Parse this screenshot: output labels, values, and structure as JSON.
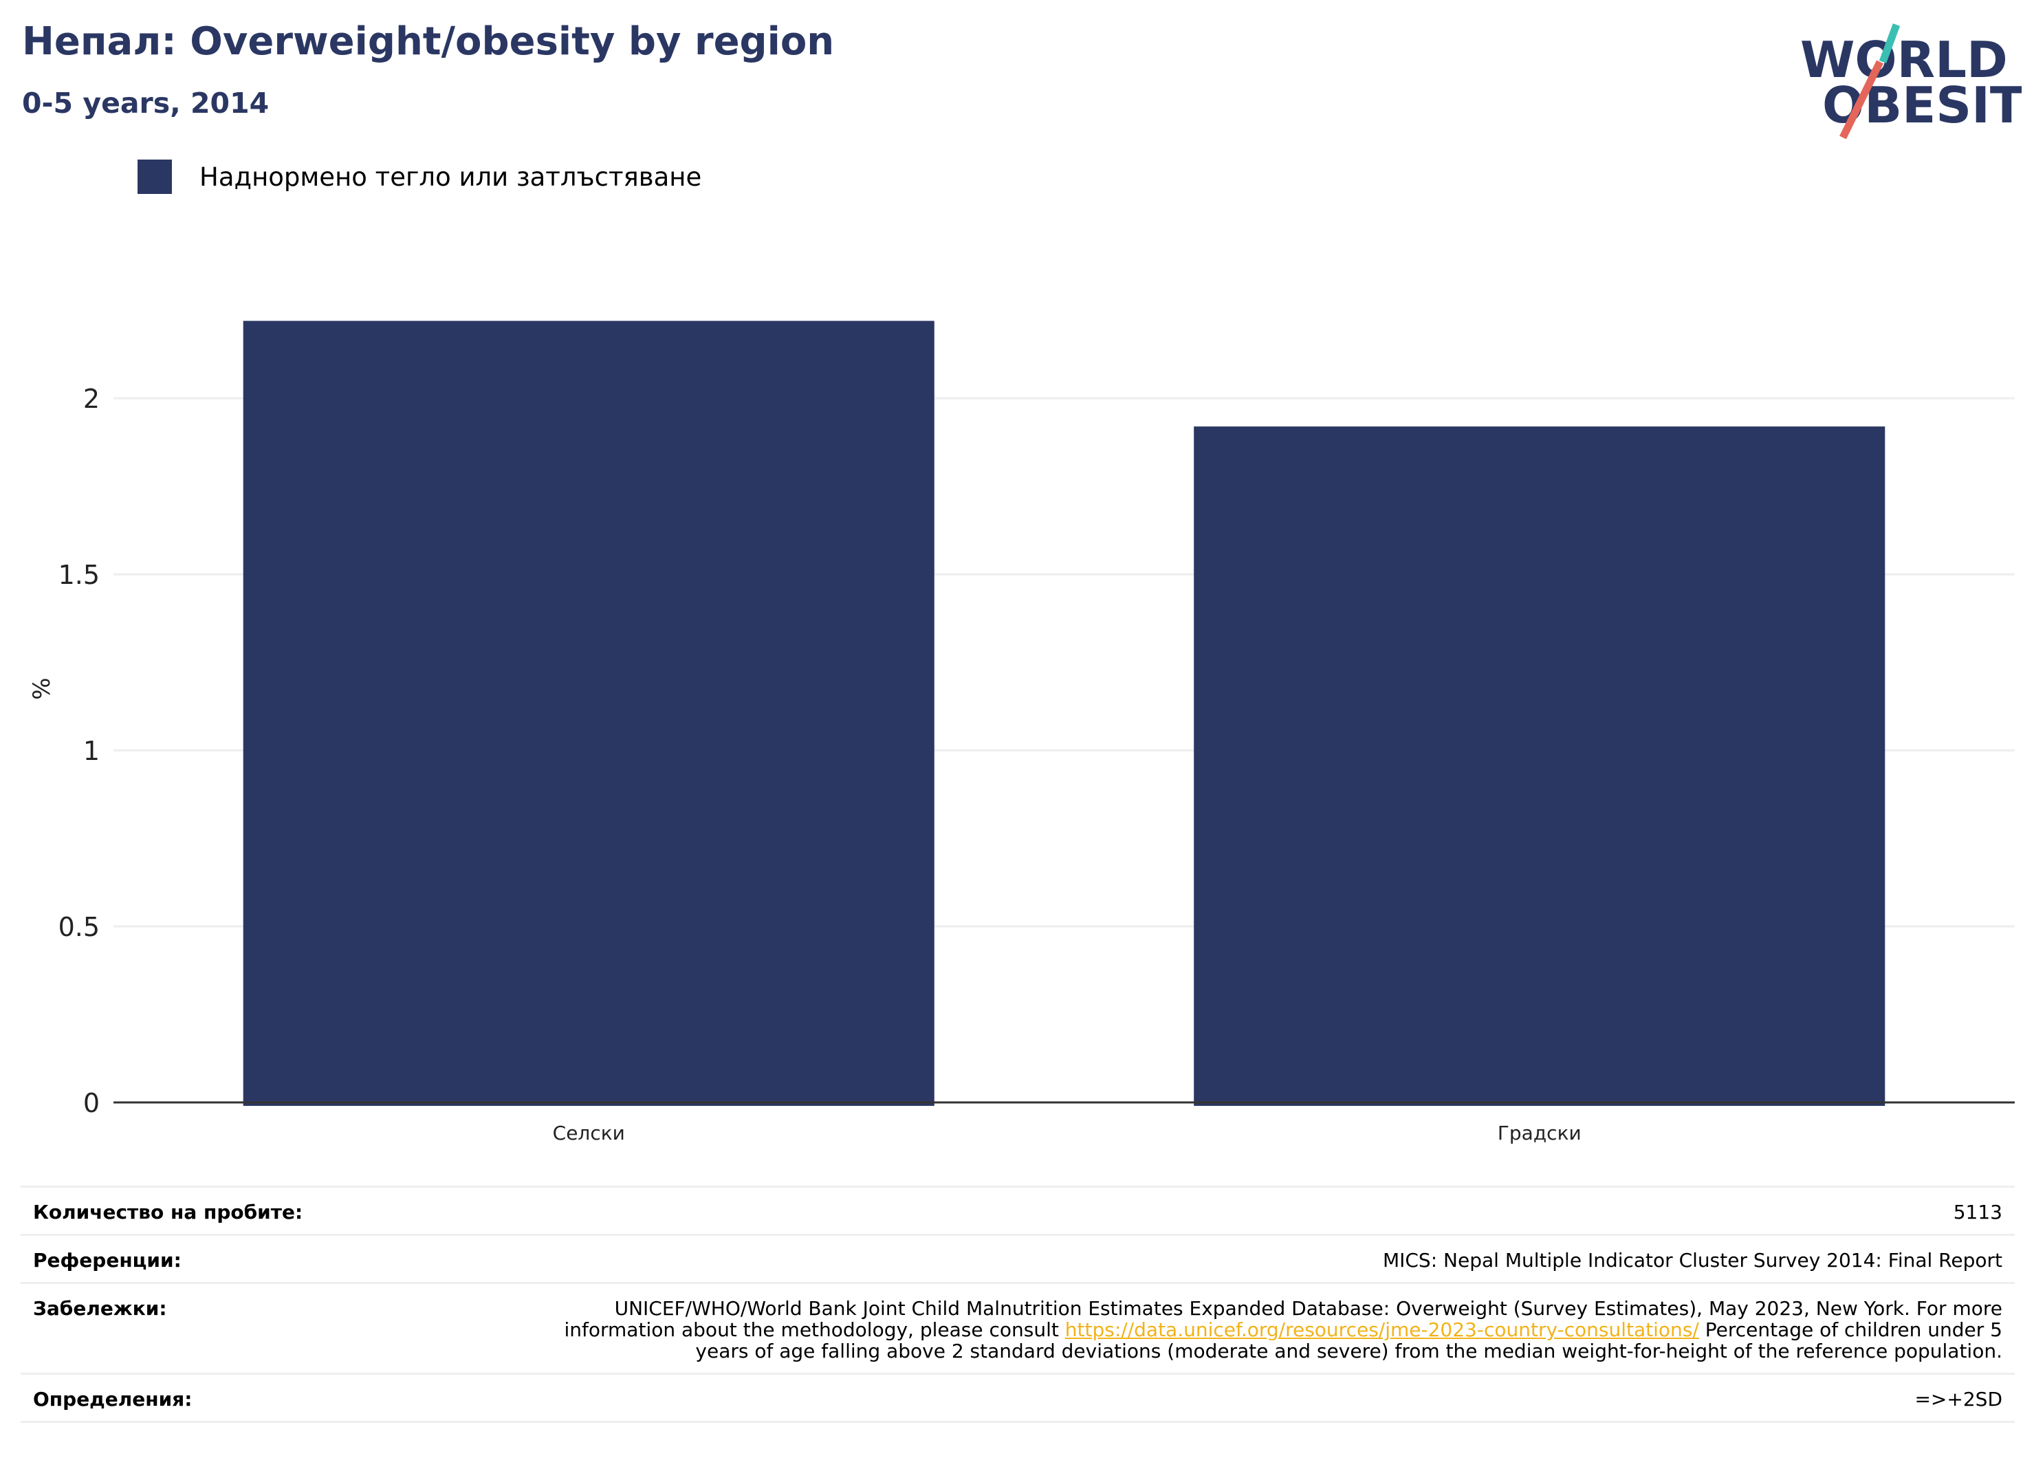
{
  "header": {
    "title": "Непал: Overweight/obesity by region",
    "subtitle": "0-5 years, 2014"
  },
  "logo": {
    "line1": "WORLD",
    "line2": "OBESITY",
    "icon": "world-obesity-logo"
  },
  "colors": {
    "bar": "#2b3763",
    "title": "#2b3763",
    "grid": "#eeeeee",
    "axis": "#333333",
    "link": "#f2b21b"
  },
  "chart_data": {
    "type": "bar",
    "categories": [
      "Селски",
      "Градски"
    ],
    "series": [
      {
        "name": "Наднормено тегло или затлъстяване",
        "values": [
          2.22,
          1.92
        ]
      }
    ],
    "ylabel": "%",
    "xlabel": "",
    "ylim": [
      0,
      2.35
    ],
    "yticks": [
      "0",
      "0.5",
      "1",
      "1.5",
      "2"
    ],
    "grid": true,
    "legend": "top-left"
  },
  "footer": {
    "rows": [
      {
        "label": "Количество на пробите:",
        "value": "5113"
      },
      {
        "label": "Референции:",
        "value": "MICS: Nepal Multiple Indicator Cluster Survey 2014: Final Report"
      },
      {
        "label": "Забележки:",
        "value_pre": "UNICEF/WHO/World Bank Joint Child Malnutrition Estimates Expanded Database: Overweight (Survey Estimates), May 2023, New York. For more information about the methodology, please consult ",
        "link": "https://data.unicef.org/resources/jme-2023-country-consultations/",
        "value_post": " Percentage of children under 5 years of age falling above 2 standard deviations (moderate and severe) from the median weight-for-height of the reference population."
      },
      {
        "label": "Определения:",
        "value": "=>+2SD"
      }
    ]
  }
}
